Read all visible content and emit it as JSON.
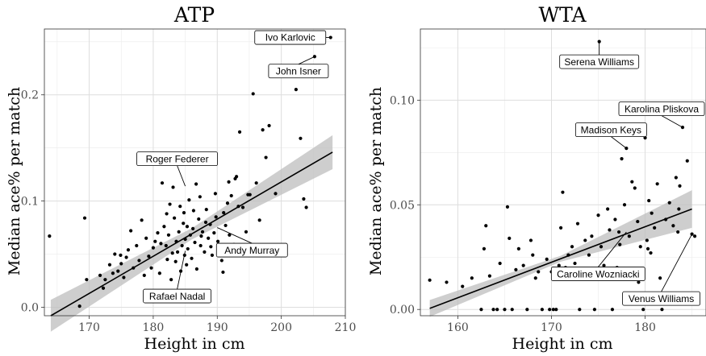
{
  "chart_data": [
    {
      "type": "scatter",
      "title": "ATP",
      "xlabel": "Height in cm",
      "ylabel": "Median ace% per match",
      "xlim": [
        163,
        210
      ],
      "ylim": [
        -0.008,
        0.262
      ],
      "xticks": [
        170,
        180,
        190,
        200,
        210
      ],
      "yticks": [
        0.0,
        0.1,
        0.2
      ],
      "ytick_labels": [
        "0.0",
        "0.1",
        "0.2"
      ],
      "grid": true,
      "regression": {
        "x0": 164,
        "y0": -0.008,
        "x1": 208,
        "y1": 0.146,
        "band_start": 0.015,
        "band_end": 0.016
      },
      "points": [
        [
          163.8,
          0.067
        ],
        [
          168.5,
          0.001
        ],
        [
          169.3,
          0.084
        ],
        [
          169.6,
          0.026
        ],
        [
          171.7,
          0.03
        ],
        [
          172.5,
          0.026
        ],
        [
          173.2,
          0.04
        ],
        [
          173.7,
          0.032
        ],
        [
          174.0,
          0.05
        ],
        [
          174.5,
          0.034
        ],
        [
          174.9,
          0.049
        ],
        [
          175.4,
          0.028
        ],
        [
          175.8,
          0.047
        ],
        [
          176.1,
          0.054
        ],
        [
          176.5,
          0.072
        ],
        [
          176.9,
          0.037
        ],
        [
          177.4,
          0.058
        ],
        [
          177.8,
          0.044
        ],
        [
          178.2,
          0.082
        ],
        [
          178.6,
          0.03
        ],
        [
          178.9,
          0.065
        ],
        [
          179.3,
          0.048
        ],
        [
          179.7,
          0.037
        ],
        [
          180.0,
          0.056
        ],
        [
          180.3,
          0.062
        ],
        [
          180.7,
          0.07
        ],
        [
          181.0,
          0.032
        ],
        [
          181.4,
          0.117
        ],
        [
          181.7,
          0.076
        ],
        [
          182.0,
          0.058
        ],
        [
          182.2,
          0.045
        ],
        [
          182.4,
          0.068
        ],
        [
          182.6,
          0.097
        ],
        [
          182.8,
          0.026
        ],
        [
          183.0,
          0.051
        ],
        [
          183.1,
          0.113
        ],
        [
          183.3,
          0.084
        ],
        [
          183.5,
          0.043
        ],
        [
          183.6,
          0.062
        ],
        [
          183.8,
          0.052
        ],
        [
          184.0,
          0.071
        ],
        [
          184.2,
          0.095
        ],
        [
          184.3,
          0.034
        ],
        [
          184.5,
          0.058
        ],
        [
          184.7,
          0.079
        ],
        [
          184.9,
          0.049
        ],
        [
          185.0,
          0.064
        ],
        [
          185.2,
          0.04
        ],
        [
          185.4,
          0.055
        ],
        [
          185.6,
          0.101
        ],
        [
          185.8,
          0.068
        ],
        [
          186.0,
          0.046
        ],
        [
          186.2,
          0.074
        ],
        [
          186.5,
          0.061
        ],
        [
          186.8,
          0.036
        ],
        [
          187.1,
          0.083
        ],
        [
          187.4,
          0.058
        ],
        [
          187.7,
          0.071
        ],
        [
          188.0,
          0.052
        ],
        [
          188.3,
          0.092
        ],
        [
          188.6,
          0.065
        ],
        [
          188.9,
          0.078
        ],
        [
          189.2,
          0.049
        ],
        [
          189.5,
          0.07
        ],
        [
          189.8,
          0.085
        ],
        [
          190.1,
          0.062
        ],
        [
          190.4,
          0.053
        ],
        [
          190.7,
          0.044
        ],
        [
          191.0,
          0.089
        ],
        [
          191.3,
          0.077
        ],
        [
          191.6,
          0.098
        ],
        [
          191.9,
          0.068
        ],
        [
          192.2,
          0.105
        ],
        [
          192.6,
          0.059
        ],
        [
          193.0,
          0.123
        ],
        [
          193.5,
          0.165
        ],
        [
          194.0,
          0.094
        ],
        [
          194.5,
          0.071
        ],
        [
          195.1,
          0.106
        ],
        [
          195.6,
          0.201
        ],
        [
          196.1,
          0.117
        ],
        [
          196.6,
          0.082
        ],
        [
          197.1,
          0.167
        ],
        [
          197.6,
          0.141
        ],
        [
          198.1,
          0.171
        ],
        [
          198.6,
          0.05
        ],
        [
          199.1,
          0.107
        ],
        [
          202.3,
          0.205
        ],
        [
          203.0,
          0.159
        ],
        [
          203.5,
          0.102
        ],
        [
          203.9,
          0.094
        ],
        [
          205.2,
          0.236
        ],
        [
          207.7,
          0.254
        ],
        [
          172.2,
          0.018
        ],
        [
          175.0,
          0.041
        ],
        [
          179.0,
          0.011
        ],
        [
          181.2,
          0.06
        ],
        [
          182.1,
          0.088
        ],
        [
          183.9,
          0.015
        ],
        [
          184.8,
          0.089
        ],
        [
          185.3,
          0.076
        ],
        [
          186.3,
          0.091
        ],
        [
          187.5,
          0.067
        ],
        [
          188.2,
          0.08
        ],
        [
          189.0,
          0.057
        ],
        [
          190.9,
          0.033
        ],
        [
          186.7,
          0.116
        ],
        [
          187.3,
          0.104
        ],
        [
          189.7,
          0.107
        ],
        [
          191.8,
          0.118
        ],
        [
          192.8,
          0.121
        ],
        [
          194.8,
          0.106
        ],
        [
          193.3,
          0.095
        ]
      ],
      "annotations": [
        {
          "text": "Ivo Karlovic",
          "x": 207.7,
          "y": 0.254
        },
        {
          "text": "John Isner",
          "x": 205.2,
          "y": 0.236
        },
        {
          "text": "Roger Federer",
          "x": 185.0,
          "y": 0.114
        },
        {
          "text": "Andy Murray",
          "x": 190.0,
          "y": 0.075
        },
        {
          "text": "Rafael Nadal",
          "x": 185.0,
          "y": 0.053
        }
      ]
    },
    {
      "type": "scatter",
      "title": "WTA",
      "xlabel": "Height in cm",
      "ylabel": "Median ace% per match",
      "xlim": [
        156,
        186.5
      ],
      "ylim": [
        -0.003,
        0.134
      ],
      "xticks": [
        160,
        170,
        180
      ],
      "yticks": [
        0.0,
        0.05,
        0.1
      ],
      "ytick_labels": [
        "0.00",
        "0.05",
        "0.10"
      ],
      "grid": true,
      "regression": {
        "x0": 157,
        "y0": 0.0005,
        "x1": 185,
        "y1": 0.048,
        "band_start": 0.004,
        "band_end": 0.009
      },
      "points": [
        [
          157.0,
          0.014
        ],
        [
          158.8,
          0.013
        ],
        [
          160.5,
          0.011
        ],
        [
          161.5,
          0.015
        ],
        [
          162.5,
          0.0
        ],
        [
          162.8,
          0.029
        ],
        [
          163.0,
          0.04
        ],
        [
          163.4,
          0.016
        ],
        [
          163.8,
          0.0
        ],
        [
          164.2,
          0.0
        ],
        [
          164.5,
          0.022
        ],
        [
          165.0,
          0.0
        ],
        [
          165.3,
          0.049
        ],
        [
          165.5,
          0.034
        ],
        [
          165.8,
          0.0
        ],
        [
          166.2,
          0.019
        ],
        [
          166.5,
          0.029
        ],
        [
          167.0,
          0.021
        ],
        [
          167.4,
          0.0
        ],
        [
          167.8,
          0.033
        ],
        [
          168.0,
          0.026
        ],
        [
          168.3,
          0.015
        ],
        [
          168.6,
          0.018
        ],
        [
          169.0,
          0.0
        ],
        [
          169.5,
          0.024
        ],
        [
          169.8,
          0.0
        ],
        [
          170.0,
          0.018
        ],
        [
          170.2,
          0.0
        ],
        [
          170.5,
          0.0
        ],
        [
          170.8,
          0.021
        ],
        [
          171.0,
          0.039
        ],
        [
          171.2,
          0.056
        ],
        [
          171.5,
          0.02
        ],
        [
          171.8,
          0.026
        ],
        [
          172.2,
          0.03
        ],
        [
          172.5,
          0.022
        ],
        [
          172.8,
          0.041
        ],
        [
          173.0,
          0.0
        ],
        [
          173.3,
          0.017
        ],
        [
          173.6,
          0.033
        ],
        [
          174.0,
          0.026
        ],
        [
          174.3,
          0.035
        ],
        [
          174.6,
          0.0
        ],
        [
          175.0,
          0.045
        ],
        [
          175.3,
          0.03
        ],
        [
          175.6,
          0.021
        ],
        [
          176.0,
          0.048
        ],
        [
          176.2,
          0.038
        ],
        [
          176.5,
          0.0
        ],
        [
          176.8,
          0.043
        ],
        [
          177.0,
          0.02
        ],
        [
          177.3,
          0.031
        ],
        [
          177.5,
          0.072
        ],
        [
          177.8,
          0.05
        ],
        [
          178.0,
          0.077
        ],
        [
          178.3,
          0.035
        ],
        [
          178.6,
          0.061
        ],
        [
          178.9,
          0.058
        ],
        [
          179.2,
          0.042
        ],
        [
          179.5,
          0.03
        ],
        [
          179.8,
          0.0
        ],
        [
          180.0,
          0.082
        ],
        [
          180.2,
          0.033
        ],
        [
          180.4,
          0.052
        ],
        [
          180.7,
          0.046
        ],
        [
          181.0,
          0.039
        ],
        [
          181.3,
          0.06
        ],
        [
          181.6,
          0.015
        ],
        [
          181.8,
          0.0
        ],
        [
          182.2,
          0.043
        ],
        [
          182.6,
          0.051
        ],
        [
          183.0,
          0.04
        ],
        [
          183.3,
          0.063
        ],
        [
          183.7,
          0.059
        ],
        [
          184.0,
          0.087
        ],
        [
          184.5,
          0.071
        ],
        [
          185.0,
          0.036
        ],
        [
          185.3,
          0.035
        ],
        [
          175.1,
          0.128
        ],
        [
          183.6,
          0.048
        ],
        [
          180.3,
          0.029
        ],
        [
          180.6,
          0.027
        ],
        [
          179.3,
          0.013
        ],
        [
          177.2,
          0.037
        ],
        [
          183.5,
          0.037
        ]
      ],
      "annotations": [
        {
          "text": "Serena Williams",
          "x": 175.1,
          "y": 0.128
        },
        {
          "text": "Karolina Pliskova",
          "x": 184.0,
          "y": 0.087
        },
        {
          "text": "Madison Keys",
          "x": 178.0,
          "y": 0.077
        },
        {
          "text": "Caroline Wozniacki",
          "x": 178.0,
          "y": 0.037
        },
        {
          "text": "Venus Williams",
          "x": 185.0,
          "y": 0.036
        }
      ]
    }
  ]
}
